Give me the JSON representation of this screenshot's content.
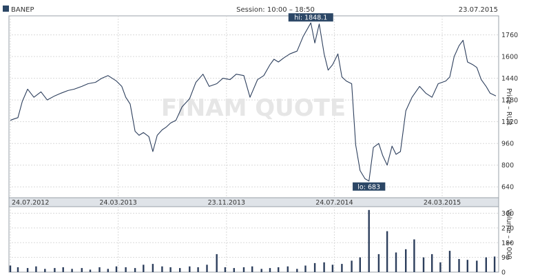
{
  "header": {
    "ticker": "BANEP",
    "session": "Session: 10:00 – 18:50",
    "date": "23.07.2015"
  },
  "watermark": "FINAM QUOTE",
  "colors": {
    "line": "#2c3e5c",
    "grid": "#d9d9d9",
    "frame": "#9aa0a8",
    "axis_band": "#dfe3e8",
    "label_bg": "#2c4766",
    "label_fg": "#ffffff"
  },
  "chart_data": [
    {
      "type": "line",
      "title": "",
      "series": [
        {
          "name": "",
          "x": [
            "2012-07-24",
            "2012-08-01",
            "2012-08-10",
            "2012-08-20",
            "2012-09-01",
            "2012-09-15",
            "2012-10-01",
            "2012-10-15",
            "2012-11-01",
            "2012-11-15",
            "2012-12-01",
            "2012-12-15",
            "2013-01-01",
            "2013-01-15",
            "2013-02-01",
            "2013-02-15",
            "2013-03-01",
            "2013-03-20",
            "2013-04-01",
            "2013-04-10",
            "2013-04-20",
            "2013-05-01",
            "2013-05-10",
            "2013-05-20",
            "2013-06-01",
            "2013-06-10",
            "2013-06-20",
            "2013-07-01",
            "2013-07-10",
            "2013-07-20",
            "2013-08-01",
            "2013-08-15",
            "2013-09-01",
            "2013-09-15",
            "2013-10-01",
            "2013-10-15",
            "2013-11-01",
            "2013-11-15",
            "2013-12-01",
            "2013-12-15",
            "2014-01-01",
            "2014-01-15",
            "2014-02-01",
            "2014-02-15",
            "2014-03-01",
            "2014-03-10",
            "2014-03-20",
            "2014-04-01",
            "2014-04-15",
            "2014-05-01",
            "2014-05-15",
            "2014-06-01",
            "2014-06-10",
            "2014-06-20",
            "2014-07-01",
            "2014-07-10",
            "2014-07-20",
            "2014-08-01",
            "2014-08-10",
            "2014-08-20",
            "2014-09-01",
            "2014-09-10",
            "2014-09-20",
            "2014-10-01",
            "2014-10-10",
            "2014-10-20",
            "2014-11-01",
            "2014-11-10",
            "2014-11-20",
            "2014-12-01",
            "2014-12-10",
            "2014-12-20",
            "2015-01-01",
            "2015-01-15",
            "2015-02-01",
            "2015-02-15",
            "2015-03-01",
            "2015-03-15",
            "2015-04-01",
            "2015-04-10",
            "2015-04-20",
            "2015-05-01",
            "2015-05-10",
            "2015-05-20",
            "2015-06-01",
            "2015-06-10",
            "2015-06-20",
            "2015-07-01",
            "2015-07-10",
            "2015-07-23"
          ],
          "y": [
            1130,
            1140,
            1150,
            1270,
            1360,
            1300,
            1340,
            1280,
            1310,
            1330,
            1350,
            1360,
            1380,
            1400,
            1410,
            1440,
            1460,
            1420,
            1380,
            1300,
            1250,
            1050,
            1020,
            1040,
            1010,
            900,
            1020,
            1060,
            1080,
            1110,
            1130,
            1230,
            1290,
            1410,
            1470,
            1380,
            1400,
            1440,
            1430,
            1470,
            1460,
            1300,
            1430,
            1460,
            1540,
            1580,
            1560,
            1590,
            1620,
            1640,
            1750,
            1848,
            1700,
            1840,
            1620,
            1500,
            1540,
            1620,
            1450,
            1420,
            1400,
            950,
            760,
            700,
            683,
            930,
            960,
            870,
            800,
            940,
            880,
            900,
            1200,
            1300,
            1380,
            1330,
            1300,
            1400,
            1420,
            1450,
            1600,
            1680,
            1720,
            1560,
            1540,
            1520,
            1430,
            1380,
            1330,
            1310
          ]
        }
      ],
      "xlabel": "",
      "ylabel": "Price – RUR",
      "yticks": [
        640,
        800,
        960,
        1120,
        1280,
        1440,
        1600,
        1760
      ],
      "ylim": [
        560,
        1900
      ],
      "xticks": [
        "24.07.2012",
        "24.03.2013",
        "23.11.2013",
        "24.07.2014",
        "24.03.2015"
      ],
      "annotations": {
        "hi": "hi: 1848.1",
        "lo": "lo: 683"
      },
      "grid": true
    },
    {
      "type": "bar",
      "title": "",
      "series": [
        {
          "name": "",
          "x": [
            "2012-07-24",
            "2012-08-10",
            "2012-09-01",
            "2012-09-20",
            "2012-10-10",
            "2012-11-01",
            "2012-11-20",
            "2012-12-10",
            "2013-01-01",
            "2013-01-20",
            "2013-02-10",
            "2013-03-01",
            "2013-03-20",
            "2013-04-10",
            "2013-05-01",
            "2013-05-20",
            "2013-06-10",
            "2013-07-01",
            "2013-07-20",
            "2013-08-10",
            "2013-09-01",
            "2013-09-20",
            "2013-10-10",
            "2013-11-01",
            "2013-11-20",
            "2013-12-10",
            "2014-01-01",
            "2014-01-20",
            "2014-02-10",
            "2014-03-01",
            "2014-03-20",
            "2014-04-10",
            "2014-05-01",
            "2014-05-20",
            "2014-06-10",
            "2014-07-01",
            "2014-07-20",
            "2014-08-10",
            "2014-09-01",
            "2014-09-20",
            "2014-10-10",
            "2014-11-01",
            "2014-11-20",
            "2014-12-10",
            "2015-01-01",
            "2015-01-20",
            "2015-02-10",
            "2015-03-01",
            "2015-03-20",
            "2015-04-10",
            "2015-05-01",
            "2015-05-20",
            "2015-06-10",
            "2015-07-01",
            "2015-07-20"
          ],
          "y": [
            40,
            30,
            25,
            35,
            20,
            25,
            30,
            20,
            25,
            15,
            30,
            20,
            35,
            30,
            25,
            45,
            50,
            35,
            30,
            25,
            35,
            30,
            45,
            110,
            30,
            25,
            30,
            35,
            20,
            25,
            30,
            35,
            20,
            40,
            55,
            60,
            45,
            50,
            70,
            90,
            380,
            110,
            250,
            120,
            140,
            200,
            90,
            110,
            60,
            130,
            80,
            75,
            70,
            90,
            95
          ]
        }
      ],
      "xlabel": "",
      "ylabel": "Volume – 1 000",
      "yticks": [
        0,
        90,
        180,
        270,
        360
      ],
      "ylim": [
        0,
        400
      ],
      "grid": true
    }
  ]
}
